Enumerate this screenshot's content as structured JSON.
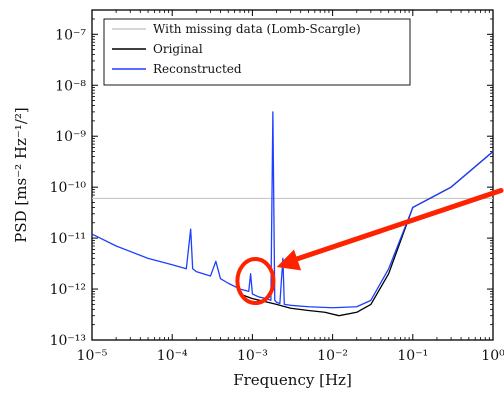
{
  "chart_data": {
    "type": "line",
    "title": "",
    "xlabel": "Frequency [Hz]",
    "ylabel": "PSD [ms⁻² Hz⁻¹/²]",
    "xscale": "log",
    "yscale": "log",
    "xlim": [
      1e-05,
      1
    ],
    "ylim": [
      1e-13,
      3e-07
    ],
    "x_ticks": [
      1e-05,
      0.0001,
      0.001,
      0.01,
      0.1,
      1
    ],
    "x_tick_labels": [
      "10⁻⁵",
      "10⁻⁴",
      "10⁻³",
      "10⁻²",
      "10⁻¹",
      "10⁰"
    ],
    "y_ticks": [
      1e-13,
      1e-12,
      1e-11,
      1e-10,
      1e-09,
      1e-08,
      1e-07
    ],
    "y_tick_labels": [
      "10⁻¹³",
      "10⁻¹²",
      "10⁻¹¹",
      "10⁻¹⁰",
      "10⁻⁹",
      "10⁻⁸",
      "10⁻⁷"
    ],
    "grid": false,
    "legend_position": "top-left",
    "series": [
      {
        "name": "With missing data (Lomb-Scargle)",
        "color": "#c8c8c8",
        "x": [
          1e-05,
          0.0001,
          0.001,
          0.01,
          0.1,
          0.3,
          1
        ],
        "y": [
          6e-11,
          6e-11,
          6e-11,
          6e-11,
          6e-11,
          6e-11,
          6e-11
        ]
      },
      {
        "name": "Original",
        "color": "#000000",
        "x": [
          0.0007,
          0.001,
          0.002,
          0.003,
          0.005,
          0.008,
          0.012,
          0.02,
          0.03,
          0.05,
          0.1,
          0.3,
          1
        ],
        "y": [
          8e-13,
          6.5e-13,
          5e-13,
          4.2e-13,
          3.8e-13,
          3.5e-13,
          3e-13,
          3.5e-13,
          5e-13,
          2e-12,
          4e-11,
          1e-10,
          5e-10
        ]
      },
      {
        "name": "Reconstructed",
        "color": "#1f3fff",
        "x": [
          1e-05,
          2e-05,
          5e-05,
          0.0001,
          0.00015,
          0.00017,
          0.00018,
          0.0002,
          0.0003,
          0.00035,
          0.0004,
          0.0005,
          0.0007,
          0.0009,
          0.00095,
          0.001,
          0.0012,
          0.0015,
          0.0017,
          0.0018,
          0.0019,
          0.002,
          0.0022,
          0.0024,
          0.0025,
          0.003,
          0.005,
          0.01,
          0.02,
          0.03,
          0.05,
          0.1,
          0.3,
          1
        ],
        "y": [
          1.2e-11,
          7e-12,
          4e-12,
          3e-12,
          2.5e-12,
          1.5e-11,
          2.5e-12,
          2.2e-12,
          1.8e-12,
          3.5e-12,
          1.6e-12,
          1.3e-12,
          1e-12,
          9e-13,
          2e-12,
          8e-13,
          7e-13,
          6.5e-13,
          6e-13,
          3e-09,
          6e-13,
          5.5e-13,
          5.2e-13,
          4e-12,
          5e-13,
          4.8e-13,
          4.5e-13,
          4.3e-13,
          4.5e-13,
          6e-13,
          2.5e-12,
          4e-11,
          1e-10,
          5e-10
        ]
      }
    ],
    "annotations": [
      {
        "type": "circle",
        "x": 0.001,
        "y": 1e-12,
        "color": "#ff2200"
      },
      {
        "type": "arrow",
        "from": [
          1,
          5e-11
        ],
        "to": [
          0.0012,
          1e-12
        ],
        "color": "#ff2200"
      }
    ]
  }
}
